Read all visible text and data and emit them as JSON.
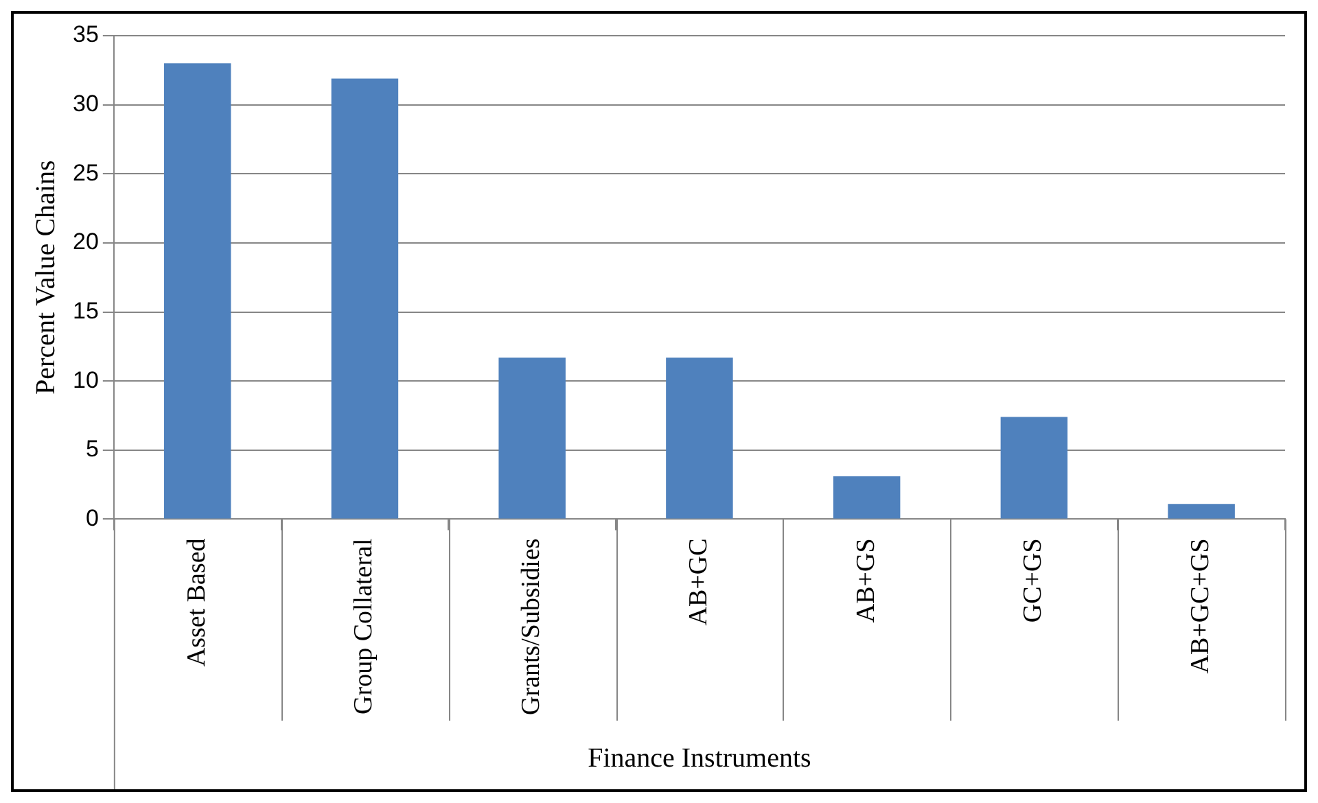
{
  "chart_data": {
    "type": "bar",
    "xlabel": "Finance Instruments",
    "ylabel": "Percent Value Chains",
    "categories": [
      "Asset Based",
      "Group Collateral",
      "Grants/Subsidies",
      "AB+GC",
      "AB+GS",
      "GC+GS",
      "AB+GC+GS"
    ],
    "values": [
      33,
      31.9,
      11.7,
      11.7,
      3.1,
      7.4,
      1.1
    ],
    "color": "#4f81bd",
    "ylim": [
      0,
      35
    ],
    "yticks": [
      0,
      5,
      10,
      15,
      20,
      25,
      30,
      35
    ],
    "grid": "y",
    "legend": false
  }
}
